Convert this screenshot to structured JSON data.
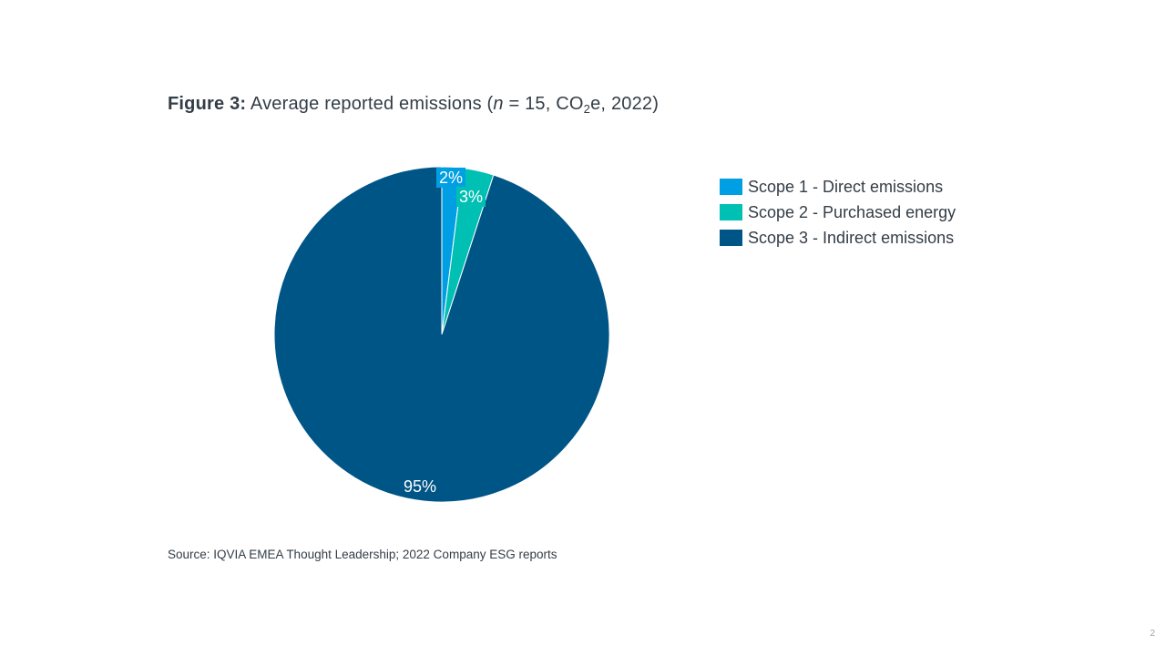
{
  "figure": {
    "prefix": "Figure 3:",
    "t1": " Average reported emissions (",
    "n": "n",
    "t2": " = 15, CO",
    "sub": "2",
    "t3": "e, 2022)"
  },
  "chart_data": {
    "type": "pie",
    "title": "Figure 3: Average reported emissions (n = 15, CO2e, 2022)",
    "categories": [
      "Scope 1 - Direct emissions",
      "Scope 2 - Purchased energy",
      "Scope 3 - Indirect emissions"
    ],
    "values": [
      2,
      3,
      95
    ],
    "data_labels": [
      "2%",
      "3%",
      "95%"
    ],
    "colors": [
      "#009fe3",
      "#00bfb3",
      "#005587"
    ],
    "legend_placement": "right"
  },
  "source": "Source: IQVIA EMEA Thought Leadership; 2022 Company ESG reports",
  "page_number": "2"
}
